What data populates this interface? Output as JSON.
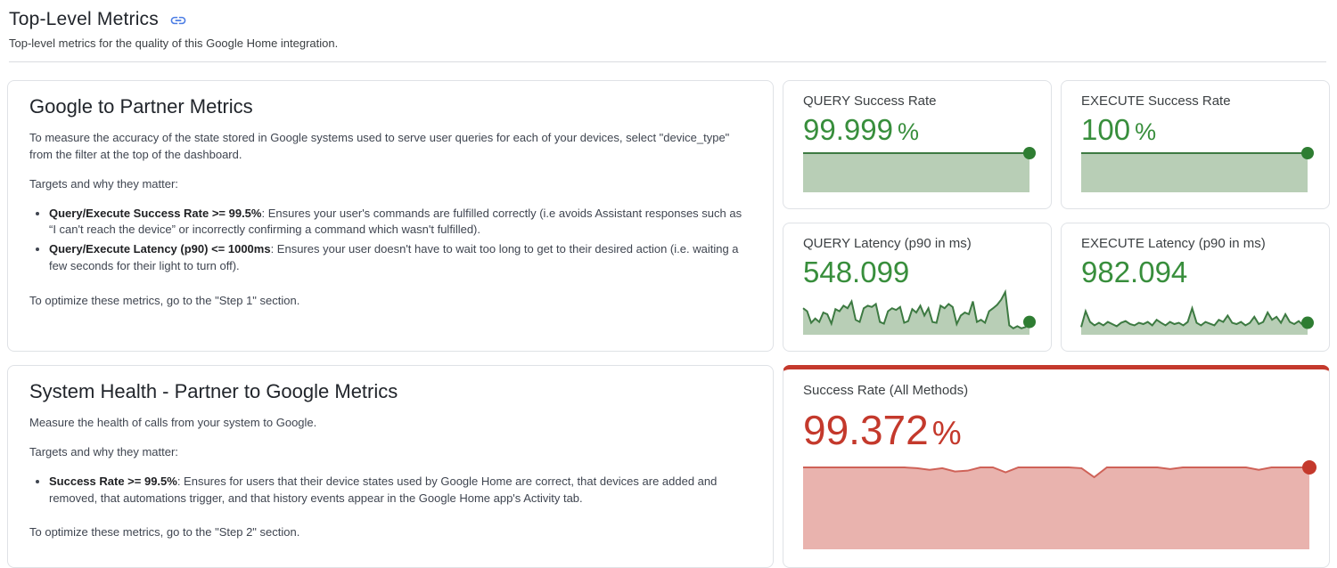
{
  "header": {
    "title": "Top-Level Metrics",
    "subtitle": "Top-level metrics for the quality of this Google Home integration."
  },
  "colors": {
    "link_blue": "#4c7de4",
    "healthy_green_text": "#388e3c",
    "healthy_green_line": "#3d7a42",
    "healthy_green_fill": "#b8ceb6",
    "healthy_green_dot": "#2e7d32",
    "alert_red_text": "#c4392c",
    "alert_red_line": "#cf6258",
    "alert_red_fill": "#e9b3ae",
    "card_border": "#dfe2e6"
  },
  "google_to_partner": {
    "title": "Google to Partner Metrics",
    "intro": "To measure the accuracy of the state stored in Google systems used to serve user queries for each of your devices, select \"device_type\" from the filter at the top of the dashboard.",
    "targets_label": "Targets and why they matter:",
    "bullets": [
      {
        "bold": "Query/Execute Success Rate >= 99.5%",
        "text": ": Ensures your user's commands are fulfilled correctly (i.e avoids Assistant responses such as “I can't reach the device” or incorrectly confirming a command which wasn't fulfilled)."
      },
      {
        "bold": "Query/Execute Latency (p90) <= 1000ms",
        "text": ": Ensures your user doesn't have to wait too long to get to their desired action (i.e. waiting a few seconds for their light to turn off)."
      }
    ],
    "footer": "To optimize these metrics, go to the \"Step 1\" section."
  },
  "system_health": {
    "title": "System Health - Partner to Google Metrics",
    "intro": "Measure the health of calls from your system to Google.",
    "targets_label": "Targets and why they matter:",
    "bullets": [
      {
        "bold": "Success Rate >= 99.5%",
        "text": ": Ensures for users that their device states used by Google Home are correct, that devices are added and removed, that automations trigger, and that history events appear in the Google Home app's Activity tab."
      }
    ],
    "footer": "To optimize these metrics, go to the \"Step 2\" section."
  },
  "scorecards": [
    {
      "label": "QUERY Success Rate",
      "value": "99.999",
      "unit": "%",
      "spark": {
        "type": "area",
        "values": [
          1,
          1
        ],
        "line": "#3d7a42",
        "fill": "#b8ceb6",
        "dot": "#2e7d32",
        "dot_r": 7
      }
    },
    {
      "label": "EXECUTE Success Rate",
      "value": "100",
      "unit": "%",
      "spark": {
        "type": "area",
        "values": [
          1,
          1
        ],
        "line": "#3d7a42",
        "fill": "#b8ceb6",
        "dot": "#2e7d32",
        "dot_r": 7
      }
    },
    {
      "label": "QUERY Latency (p90 in ms)",
      "value": "548.099",
      "unit": "",
      "spark": {
        "type": "area",
        "values": [
          0.62,
          0.55,
          0.28,
          0.38,
          0.3,
          0.52,
          0.48,
          0.26,
          0.6,
          0.55,
          0.68,
          0.62,
          0.78,
          0.35,
          0.3,
          0.62,
          0.68,
          0.65,
          0.72,
          0.3,
          0.26,
          0.55,
          0.62,
          0.58,
          0.65,
          0.28,
          0.32,
          0.6,
          0.52,
          0.68,
          0.45,
          0.62,
          0.3,
          0.28,
          0.68,
          0.62,
          0.72,
          0.65,
          0.25,
          0.45,
          0.52,
          0.48,
          0.78,
          0.3,
          0.35,
          0.28,
          0.55,
          0.62,
          0.7,
          0.82,
          1.0,
          0.22,
          0.15,
          0.2,
          0.15,
          0.18,
          0.3
        ],
        "line": "#3d7a42",
        "fill": "#b8ceb6",
        "dot": "#2e7d32",
        "dot_r": 7
      }
    },
    {
      "label": "EXECUTE Latency (p90 in ms)",
      "value": "982.094",
      "unit": "",
      "spark": {
        "type": "area",
        "values": [
          0.18,
          0.55,
          0.3,
          0.22,
          0.28,
          0.22,
          0.3,
          0.25,
          0.2,
          0.28,
          0.32,
          0.25,
          0.22,
          0.28,
          0.25,
          0.3,
          0.22,
          0.35,
          0.28,
          0.22,
          0.3,
          0.25,
          0.28,
          0.22,
          0.3,
          0.62,
          0.28,
          0.22,
          0.3,
          0.26,
          0.22,
          0.35,
          0.3,
          0.45,
          0.28,
          0.25,
          0.3,
          0.22,
          0.28,
          0.42,
          0.25,
          0.3,
          0.52,
          0.35,
          0.42,
          0.28,
          0.48,
          0.3,
          0.25,
          0.32,
          0.22,
          0.28
        ],
        "line": "#3d7a42",
        "fill": "#b8ceb6",
        "dot": "#2e7d32",
        "dot_r": 7
      }
    }
  ],
  "success_all": {
    "label": "Success Rate (All Methods)",
    "value": "99.372",
    "unit": "%",
    "spark": {
      "type": "area",
      "values": [
        1,
        1,
        1,
        1,
        1,
        1,
        1,
        1,
        1,
        0.99,
        0.97,
        0.99,
        0.95,
        0.96,
        1,
        1,
        0.94,
        1,
        1,
        1,
        1,
        1,
        0.99,
        0.88,
        1,
        1,
        1,
        1,
        1,
        0.98,
        1,
        1,
        1,
        1,
        1,
        1,
        0.97,
        1,
        1,
        1,
        1
      ],
      "line": "#cf6258",
      "fill": "#e9b3ae",
      "dot": "#c4392c",
      "dot_r": 8
    }
  }
}
